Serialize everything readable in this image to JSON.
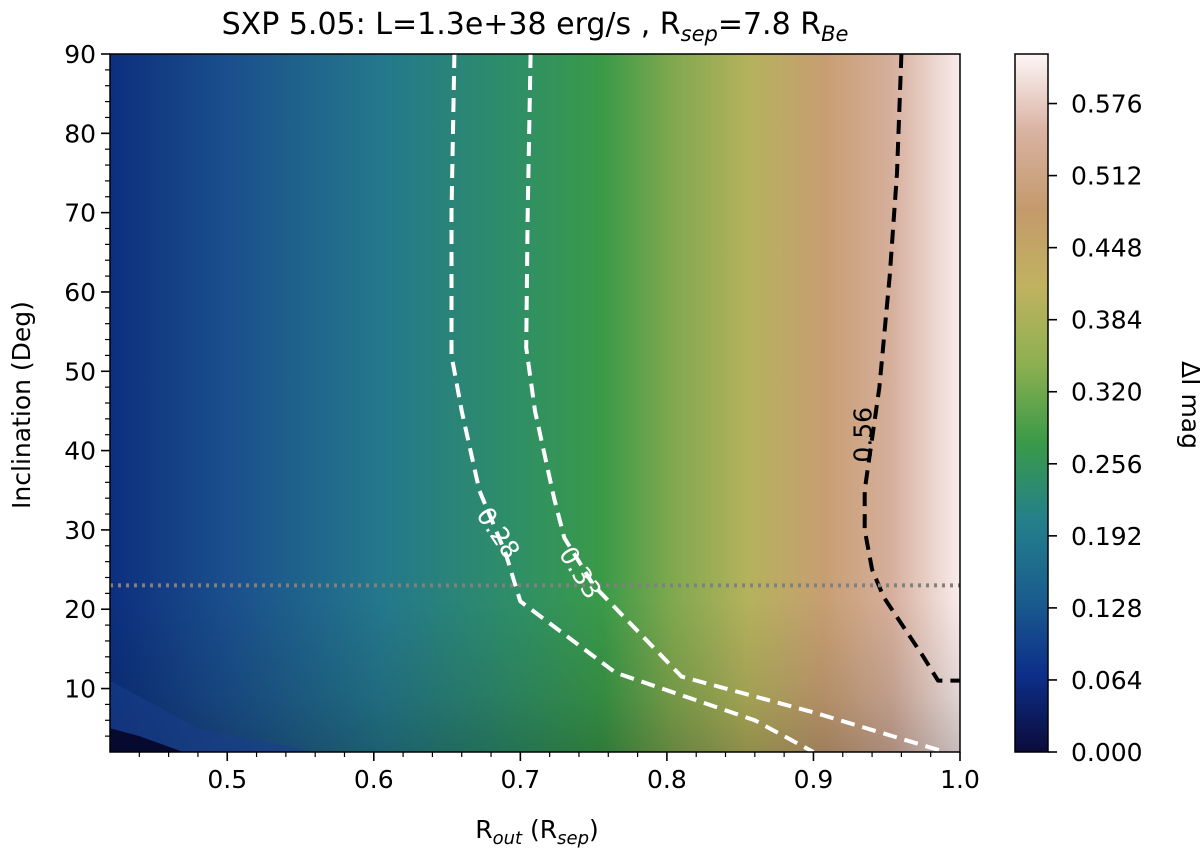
{
  "chart_data": {
    "type": "heatmap",
    "title": {
      "prefix": "SXP 5.05: L=1.3e+38 erg/s , R",
      "sub1": "sep",
      "mid": "=7.8 R",
      "sub2": "Be"
    },
    "xlabel": {
      "main": "R",
      "sub1": "out",
      "mid": " (R",
      "sub2": "sep",
      "end": ")"
    },
    "ylabel": "Inclination (Deg)",
    "xlim": [
      0.42,
      1.0
    ],
    "ylim": [
      2,
      90
    ],
    "xticks": [
      0.5,
      0.6,
      0.7,
      0.8,
      0.9,
      1.0
    ],
    "xtick_labels": [
      "0.5",
      "0.6",
      "0.7",
      "0.8",
      "0.9",
      "1.0"
    ],
    "yticks": [
      10,
      20,
      30,
      40,
      50,
      60,
      70,
      80,
      90
    ],
    "ytick_labels": [
      "10",
      "20",
      "30",
      "40",
      "50",
      "60",
      "70",
      "80",
      "90"
    ],
    "colorbar": {
      "label": "ΔI mag",
      "range": [
        0.0,
        0.62
      ],
      "ticks": [
        0.0,
        0.064,
        0.128,
        0.192,
        0.256,
        0.32,
        0.384,
        0.448,
        0.512,
        0.576
      ],
      "tick_labels": [
        "0.000",
        "0.064",
        "0.128",
        "0.192",
        "0.256",
        "0.320",
        "0.384",
        "0.448",
        "0.512",
        "0.576"
      ],
      "colormap": "gist_earth",
      "colormap_stops": [
        "#0b0b3a",
        "#0d2f8a",
        "#1a5e8e",
        "#24808a",
        "#3a9a48",
        "#8db050",
        "#c0b260",
        "#c49a6c",
        "#d9b2a2",
        "#fdf6f6"
      ]
    },
    "contours": [
      {
        "level": "0.28",
        "style": "dashed",
        "color": "#ffffff",
        "points": [
          [
            0.655,
            90
          ],
          [
            0.653,
            70
          ],
          [
            0.653,
            52
          ],
          [
            0.66,
            45
          ],
          [
            0.672,
            35
          ],
          [
            0.69,
            27
          ],
          [
            0.7,
            21
          ],
          [
            0.765,
            12
          ],
          [
            0.86,
            6
          ],
          [
            0.9,
            2
          ]
        ]
      },
      {
        "level": "0.33",
        "style": "dashed",
        "color": "#ffffff",
        "points": [
          [
            0.707,
            90
          ],
          [
            0.705,
            70
          ],
          [
            0.704,
            53
          ],
          [
            0.71,
            45
          ],
          [
            0.723,
            34
          ],
          [
            0.73,
            29
          ],
          [
            0.75,
            23
          ],
          [
            0.81,
            11.5
          ],
          [
            0.9,
            7
          ],
          [
            0.99,
            2
          ]
        ]
      },
      {
        "level": "0.56",
        "style": "dashed",
        "color": "#000000",
        "points": [
          [
            0.96,
            90
          ],
          [
            0.957,
            75
          ],
          [
            0.952,
            62
          ],
          [
            0.945,
            48
          ],
          [
            0.935,
            35
          ],
          [
            0.935,
            30
          ],
          [
            0.94,
            25
          ],
          [
            0.948,
            21.5
          ],
          [
            0.975,
            14
          ],
          [
            0.985,
            11
          ],
          [
            1.0,
            11
          ]
        ]
      }
    ],
    "contour_labels": [
      {
        "text": "0.28",
        "x": 0.684,
        "y": 29.5,
        "rotation": 56,
        "color": "#ffffff"
      },
      {
        "text": "0.33",
        "x": 0.74,
        "y": 24.5,
        "rotation": 58,
        "color": "#ffffff"
      },
      {
        "text": "0.56",
        "x": 0.935,
        "y": 42,
        "rotation": -90,
        "color": "#000000"
      }
    ],
    "reference_line": {
      "orientation": "horizontal",
      "value": 23,
      "style": "dotted",
      "color": "#808080"
    }
  }
}
